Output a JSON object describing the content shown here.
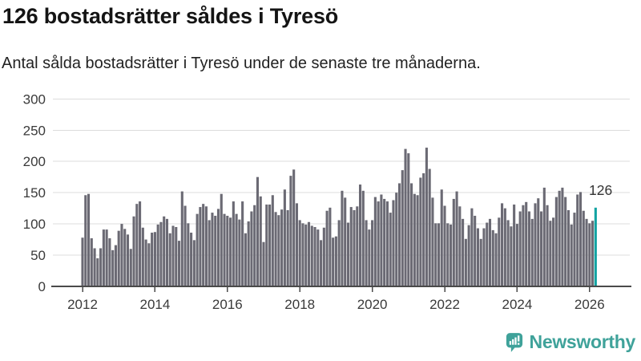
{
  "chart_data": {
    "type": "bar",
    "title": "126 bostadsrätter såldes i Tyresö",
    "subtitle": "Antal sålda bostadsrätter i Tyresö under de senaste tre månaderna.",
    "x_start": "2012-01",
    "x_frequency": "monthly",
    "xtick_labels": [
      "2012",
      "2014",
      "2016",
      "2018",
      "2020",
      "2022",
      "2024",
      "2026"
    ],
    "yticks": [
      0,
      50,
      100,
      150,
      200,
      250,
      300
    ],
    "ylim": [
      0,
      300
    ],
    "grid": true,
    "legend": false,
    "values": [
      78,
      146,
      148,
      77,
      61,
      45,
      61,
      91,
      91,
      77,
      58,
      66,
      89,
      100,
      92,
      83,
      60,
      112,
      132,
      136,
      94,
      75,
      69,
      86,
      87,
      99,
      103,
      112,
      108,
      85,
      97,
      95,
      73,
      152,
      129,
      101,
      86,
      74,
      116,
      127,
      132,
      128,
      106,
      118,
      113,
      124,
      148,
      116,
      113,
      110,
      136,
      116,
      107,
      136,
      85,
      104,
      120,
      130,
      175,
      144,
      71,
      131,
      131,
      146,
      119,
      114,
      123,
      155,
      122,
      177,
      187,
      133,
      106,
      101,
      99,
      103,
      97,
      95,
      91,
      74,
      94,
      121,
      126,
      78,
      80,
      106,
      153,
      142,
      102,
      127,
      122,
      128,
      163,
      153,
      106,
      91,
      106,
      143,
      136,
      147,
      140,
      136,
      118,
      138,
      150,
      165,
      186,
      220,
      213,
      165,
      148,
      146,
      174,
      181,
      222,
      188,
      142,
      101,
      101,
      155,
      129,
      101,
      99,
      140,
      152,
      128,
      108,
      76,
      98,
      125,
      113,
      93,
      76,
      93,
      102,
      108,
      90,
      85,
      110,
      133,
      125,
      106,
      96,
      131,
      100,
      120,
      130,
      135,
      120,
      108,
      133,
      141,
      120,
      158,
      130,
      105,
      110,
      143,
      153,
      158,
      143,
      122,
      99,
      118,
      147,
      151,
      121,
      108,
      101,
      105,
      126
    ],
    "highlight_index": 170,
    "highlight_value": 126,
    "annotation": "126"
  },
  "colors": {
    "bar": "#6b6a74",
    "highlight": "#12a3a2",
    "grid": "#dcdcdc",
    "axis": "#4a4a4a",
    "tick_label": "#3a3a3a",
    "annotation": "#333333",
    "title": "#141414",
    "subtitle": "#222222",
    "brand": "#3fa29a"
  },
  "footer": {
    "brand": "Newsworthy"
  }
}
